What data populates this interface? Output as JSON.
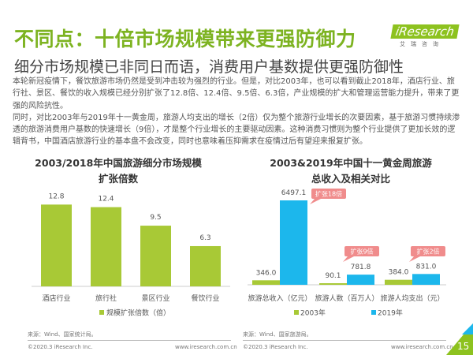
{
  "header": {
    "title": "不同点：十倍市场规模带来更强防御力",
    "subtitle": "细分市场规模已非同日而语，消费用户基数提供更强防御性",
    "logo": {
      "brand": "iResearch",
      "cn": "艾瑞咨询"
    }
  },
  "body": [
    "本轮新冠疫情下，餐饮旅游市场仍然是受到冲击较为强烈的行业。但是，对比2003年，也可以看到截止2018年，酒店行业、旅行社、景区、餐饮的收入规模已经分别扩张了12.8倍、12.4倍、9.5倍、6.3倍，产业规模的扩大和管理运营能力提升，带来了更强的风险抗性。",
    "同时，对比2003年与2019年十一黄金周，旅游人均支出的增长（2倍）仅为整个旅游行业增长的次要因素，基于旅游习惯持续渗透的旅游消费用户基数的快速增长（9倍），才是整个行业增长的主要驱动因素。这种消费习惯则为整个行业提供了更加长效的逻辑背书，中国酒店旅游行业的基本盘不会改变，同时也意味着压抑需求在疫情过后有望迎来报复扩张。"
  ],
  "chart_data": [
    {
      "type": "bar",
      "title_line1": "2003/2018年中国旅游细分市场规模",
      "title_line2": "扩张倍数",
      "categories": [
        "酒店行业",
        "旅行社",
        "景区行业",
        "餐饮行业"
      ],
      "series": [
        {
          "name": "规模扩张倍数（倍）",
          "values": [
            12.8,
            12.4,
            9.5,
            6.3
          ],
          "color": "#a8c936"
        }
      ],
      "value_labels": [
        "12.8",
        "12.4",
        "9.5",
        "6.3"
      ],
      "legend": "bottom",
      "grid": false
    },
    {
      "type": "bar",
      "title_line1": "2003&2019年中国十一黄金周旅游",
      "title_line2": "总收入及相关对比",
      "categories": [
        "旅游总收入（亿元）",
        "旅游人数（百万人）",
        "旅游人均支出（元）"
      ],
      "series": [
        {
          "name": "2003年",
          "values": [
            346.0,
            90.1,
            384.0
          ],
          "labels": [
            "346.0",
            "90.1",
            "384.0"
          ],
          "color": "#a8c936"
        },
        {
          "name": "2019年",
          "values": [
            6497.1,
            781.8,
            831.0
          ],
          "labels": [
            "6497.1",
            "781.8",
            "831.0"
          ],
          "color": "#1cb7ec"
        }
      ],
      "annotations": [
        "扩张18倍",
        "扩张9倍",
        "扩张2倍"
      ],
      "annotation_color": "#f08c8c",
      "legend": "bottom",
      "grid": false
    }
  ],
  "sources": {
    "left": "来源：Wind、国家统计局。",
    "right": "来源：Wind、国家旅游局。"
  },
  "footer": {
    "copyright": "©2020.3 iResearch Inc.",
    "url": "www.iresearch.com.cn",
    "page": "15"
  }
}
